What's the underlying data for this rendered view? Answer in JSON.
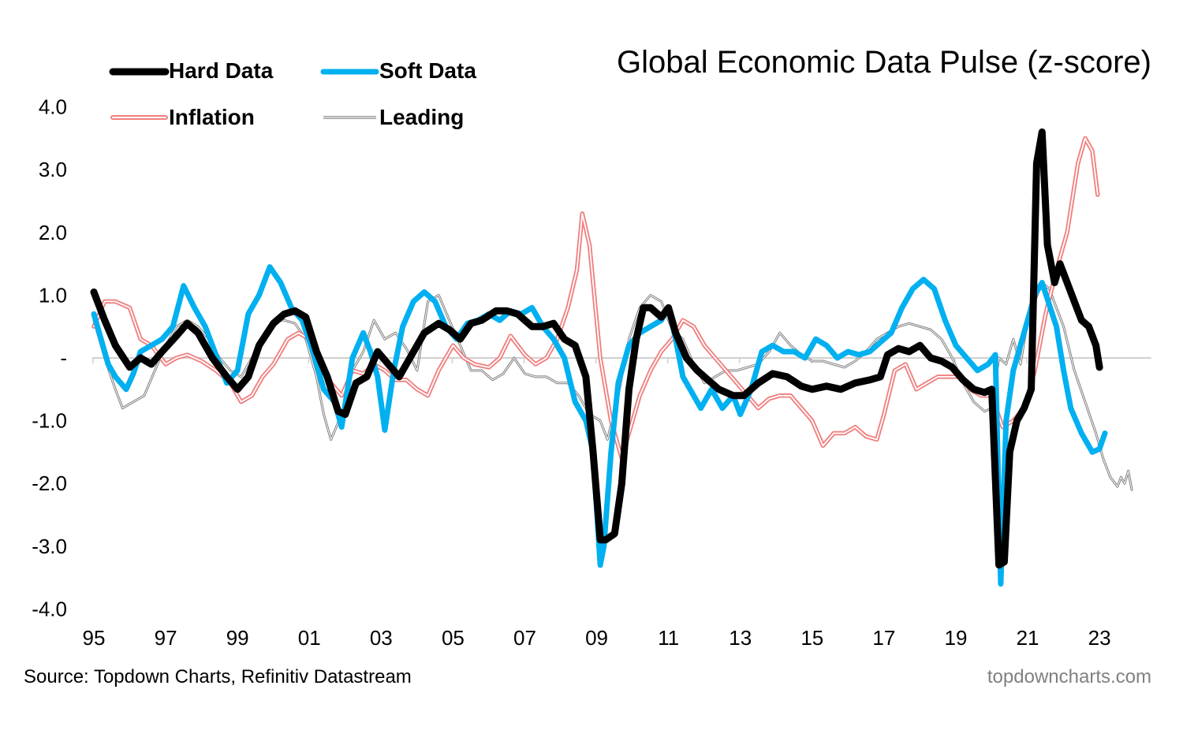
{
  "chart_data": {
    "type": "line",
    "title": "Global Economic Data Pulse (z-score)",
    "xlabel": "",
    "ylabel": "",
    "source": "Source: Topdown Charts, Refinitiv Datastream",
    "brand": "topdowncharts.com",
    "xlim": [
      1995,
      2024
    ],
    "ylim": [
      -4,
      4
    ],
    "y_ticks": [
      4,
      3,
      2,
      1,
      0,
      -1,
      -2,
      -3,
      -4
    ],
    "y_tick_labels": [
      "4.0",
      "3.0",
      "2.0",
      "1.0",
      "-",
      "-1.0",
      "-2.0",
      "-3.0",
      "-4.0"
    ],
    "x_ticks": [
      1995,
      1997,
      1999,
      2001,
      2003,
      2005,
      2007,
      2009,
      2011,
      2013,
      2015,
      2017,
      2019,
      2021,
      2023
    ],
    "x_tick_labels": [
      "95",
      "97",
      "99",
      "01",
      "03",
      "05",
      "07",
      "09",
      "11",
      "13",
      "15",
      "17",
      "19",
      "21",
      "23"
    ],
    "zero_line": true,
    "legend_position": "top-left",
    "series": [
      {
        "name": "Hard Data",
        "color": "#000000",
        "style": "thick",
        "x": [
          1995.0,
          1995.3,
          1995.6,
          1996.0,
          1996.3,
          1996.6,
          1996.9,
          1997.3,
          1997.6,
          1997.9,
          1998.3,
          1998.7,
          1999.0,
          1999.3,
          1999.6,
          2000.0,
          2000.3,
          2000.6,
          2000.9,
          2001.2,
          2001.5,
          2001.8,
          2002.0,
          2002.3,
          2002.6,
          2002.9,
          2003.2,
          2003.5,
          2003.8,
          2004.2,
          2004.6,
          2004.9,
          2005.2,
          2005.5,
          2005.8,
          2006.2,
          2006.5,
          2006.8,
          2007.2,
          2007.5,
          2007.8,
          2008.1,
          2008.4,
          2008.7,
          2008.9,
          2009.1,
          2009.25,
          2009.5,
          2009.7,
          2009.9,
          2010.1,
          2010.3,
          2010.5,
          2010.8,
          2011.0,
          2011.2,
          2011.5,
          2011.8,
          2012.1,
          2012.4,
          2012.8,
          2013.1,
          2013.5,
          2013.9,
          2014.3,
          2014.7,
          2015.0,
          2015.4,
          2015.8,
          2016.2,
          2016.6,
          2016.9,
          2017.1,
          2017.4,
          2017.7,
          2018.0,
          2018.3,
          2018.6,
          2018.9,
          2019.2,
          2019.5,
          2019.8,
          2020.0,
          2020.2,
          2020.35,
          2020.5,
          2020.7,
          2020.9,
          2021.1,
          2021.25,
          2021.4,
          2021.55,
          2021.75,
          2021.9,
          2022.1,
          2022.3,
          2022.5,
          2022.7,
          2022.9,
          2023.0
        ],
        "y": [
          1.05,
          0.6,
          0.2,
          -0.15,
          0.0,
          -0.1,
          0.1,
          0.35,
          0.55,
          0.4,
          0.0,
          -0.3,
          -0.5,
          -0.3,
          0.2,
          0.55,
          0.7,
          0.75,
          0.65,
          0.1,
          -0.3,
          -0.85,
          -0.9,
          -0.4,
          -0.3,
          0.1,
          -0.1,
          -0.3,
          0.0,
          0.4,
          0.55,
          0.45,
          0.3,
          0.55,
          0.6,
          0.75,
          0.75,
          0.7,
          0.5,
          0.5,
          0.55,
          0.3,
          0.2,
          -0.3,
          -1.5,
          -2.9,
          -2.9,
          -2.8,
          -2.0,
          -0.5,
          0.3,
          0.8,
          0.8,
          0.65,
          0.8,
          0.4,
          0.0,
          -0.2,
          -0.35,
          -0.5,
          -0.6,
          -0.6,
          -0.4,
          -0.25,
          -0.3,
          -0.45,
          -0.5,
          -0.45,
          -0.5,
          -0.4,
          -0.35,
          -0.3,
          0.05,
          0.15,
          0.1,
          0.2,
          0.0,
          -0.05,
          -0.15,
          -0.35,
          -0.5,
          -0.55,
          -0.5,
          -3.3,
          -3.25,
          -1.5,
          -1.0,
          -0.8,
          -0.5,
          3.1,
          3.6,
          1.8,
          1.2,
          1.5,
          1.2,
          0.9,
          0.6,
          0.5,
          0.2,
          -0.15
        ]
      },
      {
        "name": "Soft Data",
        "color": "#00B0F0",
        "style": "thick",
        "x": [
          1995.0,
          1995.2,
          1995.4,
          1995.6,
          1995.9,
          1996.1,
          1996.3,
          1996.6,
          1996.9,
          1997.2,
          1997.5,
          1997.8,
          1998.1,
          1998.4,
          1998.7,
          1999.0,
          1999.3,
          1999.6,
          1999.9,
          2000.2,
          2000.5,
          2000.8,
          2001.1,
          2001.4,
          2001.7,
          2001.9,
          2002.2,
          2002.5,
          2002.7,
          2002.9,
          2003.1,
          2003.35,
          2003.6,
          2003.9,
          2004.2,
          2004.5,
          2004.8,
          2005.1,
          2005.4,
          2005.7,
          2006.0,
          2006.3,
          2006.6,
          2006.9,
          2007.2,
          2007.5,
          2007.8,
          2008.1,
          2008.4,
          2008.7,
          2008.9,
          2009.1,
          2009.2,
          2009.4,
          2009.6,
          2009.9,
          2010.2,
          2010.5,
          2010.8,
          2011.0,
          2011.2,
          2011.4,
          2011.6,
          2011.9,
          2012.2,
          2012.5,
          2012.8,
          2013.0,
          2013.3,
          2013.6,
          2013.9,
          2014.2,
          2014.5,
          2014.8,
          2015.1,
          2015.4,
          2015.7,
          2016.0,
          2016.3,
          2016.6,
          2016.9,
          2017.2,
          2017.5,
          2017.8,
          2018.1,
          2018.4,
          2018.7,
          2019.0,
          2019.3,
          2019.6,
          2019.9,
          2020.1,
          2020.25,
          2020.4,
          2020.6,
          2020.8,
          2021.0,
          2021.2,
          2021.4,
          2021.6,
          2021.8,
          2022.0,
          2022.2,
          2022.5,
          2022.8,
          2023.0,
          2023.15
        ],
        "y": [
          0.7,
          0.3,
          -0.1,
          -0.3,
          -0.5,
          -0.25,
          0.1,
          0.2,
          0.3,
          0.5,
          1.15,
          0.8,
          0.5,
          0.05,
          -0.4,
          -0.2,
          0.7,
          1.0,
          1.45,
          1.2,
          0.8,
          0.6,
          0.1,
          -0.5,
          -0.7,
          -1.1,
          0.0,
          0.4,
          0.1,
          -0.3,
          -1.15,
          -0.2,
          0.5,
          0.9,
          1.05,
          0.9,
          0.5,
          0.3,
          0.55,
          0.6,
          0.7,
          0.6,
          0.75,
          0.7,
          0.8,
          0.5,
          0.3,
          0.0,
          -0.7,
          -1.0,
          -1.5,
          -3.3,
          -3.0,
          -1.5,
          -0.4,
          0.2,
          0.4,
          0.5,
          0.6,
          0.8,
          0.3,
          -0.3,
          -0.5,
          -0.8,
          -0.5,
          -0.8,
          -0.6,
          -0.9,
          -0.5,
          0.1,
          0.2,
          0.1,
          0.1,
          0.0,
          0.3,
          0.2,
          0.0,
          0.1,
          0.05,
          0.1,
          0.25,
          0.4,
          0.8,
          1.1,
          1.25,
          1.1,
          0.6,
          0.2,
          0.0,
          -0.2,
          -0.1,
          0.05,
          -3.6,
          -1.0,
          -0.2,
          0.2,
          0.6,
          1.0,
          1.2,
          0.85,
          0.5,
          -0.2,
          -0.8,
          -1.2,
          -1.5,
          -1.45,
          -1.2
        ]
      },
      {
        "name": "Inflation",
        "color": "#F08080",
        "style": "double",
        "x": [
          1995.0,
          1995.3,
          1995.6,
          1996.0,
          1996.3,
          1996.6,
          1997.0,
          1997.3,
          1997.6,
          1998.0,
          1998.4,
          1998.8,
          1999.1,
          1999.4,
          1999.7,
          2000.0,
          2000.4,
          2000.7,
          2001.0,
          2001.3,
          2001.6,
          2001.9,
          2002.2,
          2002.5,
          2002.8,
          2003.1,
          2003.4,
          2003.7,
          2004.0,
          2004.3,
          2004.6,
          2005.0,
          2005.3,
          2005.6,
          2006.0,
          2006.3,
          2006.6,
          2007.0,
          2007.3,
          2007.6,
          2007.9,
          2008.2,
          2008.45,
          2008.6,
          2008.8,
          2009.1,
          2009.4,
          2009.7,
          2009.9,
          2010.2,
          2010.5,
          2010.8,
          2011.1,
          2011.4,
          2011.7,
          2012.0,
          2012.3,
          2012.6,
          2012.9,
          2013.2,
          2013.5,
          2013.8,
          2014.1,
          2014.4,
          2014.7,
          2015.0,
          2015.3,
          2015.6,
          2015.9,
          2016.2,
          2016.5,
          2016.8,
          2017.0,
          2017.3,
          2017.6,
          2017.9,
          2018.2,
          2018.5,
          2018.8,
          2019.1,
          2019.4,
          2019.7,
          2020.0,
          2020.3,
          2020.6,
          2020.9,
          2021.2,
          2021.5,
          2021.8,
          2022.1,
          2022.4,
          2022.6,
          2022.8,
          2022.95
        ],
        "y": [
          0.5,
          0.9,
          0.9,
          0.8,
          0.3,
          0.2,
          -0.1,
          0.0,
          0.05,
          -0.05,
          -0.2,
          -0.4,
          -0.7,
          -0.6,
          -0.3,
          -0.1,
          0.3,
          0.4,
          0.3,
          0.0,
          -0.4,
          -0.6,
          -0.2,
          -0.25,
          -0.1,
          -0.2,
          -0.35,
          -0.35,
          -0.5,
          -0.6,
          -0.2,
          0.2,
          0.0,
          -0.1,
          -0.15,
          0.0,
          0.35,
          0.05,
          -0.1,
          0.0,
          0.3,
          0.8,
          1.4,
          2.3,
          1.8,
          0.0,
          -1.0,
          -1.6,
          -1.2,
          -0.6,
          -0.2,
          0.1,
          0.3,
          0.6,
          0.5,
          0.2,
          0.0,
          -0.2,
          -0.4,
          -0.6,
          -0.8,
          -0.65,
          -0.6,
          -0.6,
          -0.8,
          -1.0,
          -1.4,
          -1.2,
          -1.2,
          -1.1,
          -1.25,
          -1.3,
          -0.9,
          -0.2,
          -0.1,
          -0.5,
          -0.4,
          -0.3,
          -0.3,
          -0.3,
          -0.5,
          -0.6,
          -0.6,
          -1.1,
          -1.0,
          -0.8,
          -0.2,
          0.7,
          1.4,
          2.0,
          3.1,
          3.5,
          3.3,
          2.6
        ]
      },
      {
        "name": "Leading",
        "color": "#808080",
        "style": "thin-double",
        "x": [
          1995.0,
          1995.3,
          1995.6,
          1995.8,
          1996.1,
          1996.4,
          1996.7,
          1997.0,
          1997.3,
          1997.6,
          1997.9,
          1998.2,
          1998.5,
          1998.8,
          1999.1,
          1999.4,
          1999.7,
          2000.0,
          2000.3,
          2000.6,
          2000.9,
          2001.2,
          2001.4,
          2001.6,
          2001.9,
          2002.2,
          2002.5,
          2002.8,
          2003.1,
          2003.4,
          2003.7,
          2004.0,
          2004.3,
          2004.6,
          2004.9,
          2005.2,
          2005.5,
          2005.8,
          2006.1,
          2006.4,
          2006.7,
          2007.0,
          2007.3,
          2007.6,
          2007.9,
          2008.2,
          2008.5,
          2008.8,
          2009.1,
          2009.3,
          2009.6,
          2009.9,
          2010.2,
          2010.5,
          2010.8,
          2011.1,
          2011.4,
          2011.7,
          2012.0,
          2012.3,
          2012.6,
          2012.9,
          2013.2,
          2013.5,
          2013.8,
          2014.1,
          2014.4,
          2014.7,
          2015.0,
          2015.3,
          2015.6,
          2015.9,
          2016.2,
          2016.5,
          2016.8,
          2017.1,
          2017.4,
          2017.7,
          2018.0,
          2018.3,
          2018.6,
          2018.9,
          2019.2,
          2019.5,
          2019.8,
          2020.0,
          2020.2,
          2020.4,
          2020.6,
          2020.8,
          2021.0,
          2021.2,
          2021.4,
          2021.6,
          2021.8,
          2022.0,
          2022.3,
          2022.6,
          2022.9,
          2023.1,
          2023.3,
          2023.5,
          2023.6,
          2023.7,
          2023.8,
          2023.9
        ],
        "y": [
          0.6,
          0.0,
          -0.5,
          -0.8,
          -0.7,
          -0.6,
          -0.2,
          0.2,
          0.5,
          0.6,
          0.5,
          0.3,
          0.0,
          -0.2,
          -0.3,
          0.0,
          0.35,
          0.6,
          0.6,
          0.55,
          0.3,
          -0.3,
          -0.9,
          -1.3,
          -0.9,
          -0.2,
          0.1,
          0.6,
          0.3,
          0.4,
          0.15,
          -0.2,
          0.9,
          1.0,
          0.6,
          0.2,
          -0.2,
          -0.2,
          -0.35,
          -0.25,
          0.0,
          -0.25,
          -0.3,
          -0.3,
          -0.4,
          -0.4,
          -0.6,
          -0.9,
          -1.0,
          -1.3,
          -0.6,
          0.3,
          0.8,
          1.0,
          0.9,
          0.45,
          0.3,
          -0.1,
          -0.4,
          -0.3,
          -0.2,
          -0.2,
          -0.15,
          -0.1,
          0.1,
          0.4,
          0.2,
          0.05,
          -0.05,
          -0.05,
          -0.1,
          -0.15,
          -0.05,
          0.1,
          0.3,
          0.4,
          0.5,
          0.55,
          0.5,
          0.45,
          0.3,
          0.0,
          -0.4,
          -0.7,
          -0.85,
          -0.8,
          0.0,
          -0.1,
          0.3,
          -0.1,
          0.6,
          0.9,
          1.2,
          1.1,
          0.8,
          0.5,
          -0.2,
          -0.7,
          -1.2,
          -1.6,
          -1.9,
          -2.05,
          -1.9,
          -2.0,
          -1.8,
          -2.1
        ]
      }
    ]
  }
}
